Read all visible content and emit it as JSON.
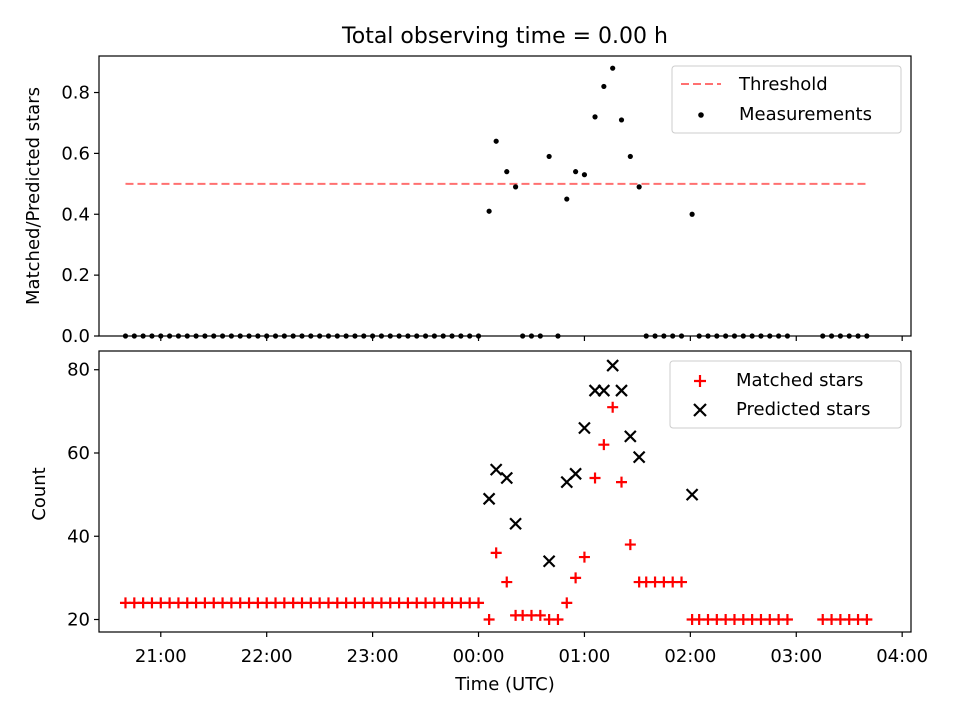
{
  "figure": {
    "title": "Total observing time = 0.00 h"
  },
  "chart_data": [
    {
      "type": "scatter",
      "ylabel": "Matched/Predicted stars",
      "xlabel": "",
      "ylim": [
        0,
        0.92
      ],
      "yticks": [
        "0.0",
        "0.2",
        "0.4",
        "0.6",
        "0.8"
      ],
      "xlim": [
        "20:25",
        "04:05"
      ],
      "grid": false,
      "legend_position": "top-right",
      "threshold": {
        "name": "Threshold",
        "value": 0.5,
        "x_range": [
          "20:40",
          "03:41"
        ],
        "color": "#ff7070",
        "style": "dashed"
      },
      "series": [
        {
          "name": "Measurements",
          "marker": "dot",
          "color": "#000000",
          "points": [
            [
              "20:40",
              0
            ],
            [
              "20:45",
              0
            ],
            [
              "20:50",
              0
            ],
            [
              "20:55",
              0
            ],
            [
              "21:00",
              0
            ],
            [
              "21:05",
              0
            ],
            [
              "21:10",
              0
            ],
            [
              "21:15",
              0
            ],
            [
              "21:20",
              0
            ],
            [
              "21:25",
              0
            ],
            [
              "21:30",
              0
            ],
            [
              "21:35",
              0
            ],
            [
              "21:40",
              0
            ],
            [
              "21:45",
              0
            ],
            [
              "21:50",
              0
            ],
            [
              "21:55",
              0
            ],
            [
              "22:00",
              0
            ],
            [
              "22:05",
              0
            ],
            [
              "22:10",
              0
            ],
            [
              "22:15",
              0
            ],
            [
              "22:20",
              0
            ],
            [
              "22:25",
              0
            ],
            [
              "22:30",
              0
            ],
            [
              "22:35",
              0
            ],
            [
              "22:40",
              0
            ],
            [
              "22:45",
              0
            ],
            [
              "22:50",
              0
            ],
            [
              "22:55",
              0
            ],
            [
              "23:00",
              0
            ],
            [
              "23:05",
              0
            ],
            [
              "23:10",
              0
            ],
            [
              "23:15",
              0
            ],
            [
              "23:20",
              0
            ],
            [
              "23:25",
              0
            ],
            [
              "23:30",
              0
            ],
            [
              "23:35",
              0
            ],
            [
              "23:40",
              0
            ],
            [
              "23:45",
              0
            ],
            [
              "23:50",
              0
            ],
            [
              "23:55",
              0
            ],
            [
              "00:00",
              0
            ],
            [
              "00:06",
              0.41
            ],
            [
              "00:10",
              0.64
            ],
            [
              "00:16",
              0.54
            ],
            [
              "00:21",
              0.49
            ],
            [
              "00:25",
              0
            ],
            [
              "00:30",
              0
            ],
            [
              "00:35",
              0
            ],
            [
              "00:40",
              0.59
            ],
            [
              "00:45",
              0
            ],
            [
              "00:50",
              0.45
            ],
            [
              "00:55",
              0.54
            ],
            [
              "01:00",
              0.53
            ],
            [
              "01:06",
              0.72
            ],
            [
              "01:11",
              0.82
            ],
            [
              "01:16",
              0.88
            ],
            [
              "01:21",
              0.71
            ],
            [
              "01:26",
              0.59
            ],
            [
              "01:31",
              0.49
            ],
            [
              "01:35",
              0
            ],
            [
              "01:40",
              0
            ],
            [
              "01:45",
              0
            ],
            [
              "01:50",
              0
            ],
            [
              "01:55",
              0
            ],
            [
              "02:01",
              0.4
            ],
            [
              "02:05",
              0
            ],
            [
              "02:10",
              0
            ],
            [
              "02:15",
              0
            ],
            [
              "02:20",
              0
            ],
            [
              "02:25",
              0
            ],
            [
              "02:30",
              0
            ],
            [
              "02:35",
              0
            ],
            [
              "02:40",
              0
            ],
            [
              "02:45",
              0
            ],
            [
              "02:50",
              0
            ],
            [
              "02:55",
              0
            ],
            [
              "03:15",
              0
            ],
            [
              "03:20",
              0
            ],
            [
              "03:25",
              0
            ],
            [
              "03:30",
              0
            ],
            [
              "03:35",
              0
            ],
            [
              "03:40",
              0
            ]
          ]
        }
      ]
    },
    {
      "type": "scatter",
      "ylabel": "Count",
      "xlabel": "Time (UTC)",
      "ylim": [
        17,
        84.5
      ],
      "yticks": [
        "20",
        "40",
        "60",
        "80"
      ],
      "xlim": [
        "20:25",
        "04:05"
      ],
      "xticks": [
        "21:00",
        "22:00",
        "23:00",
        "00:00",
        "01:00",
        "02:00",
        "03:00",
        "04:00"
      ],
      "grid": false,
      "legend_position": "top-right",
      "series": [
        {
          "name": "Matched stars",
          "marker": "plus",
          "color": "#ff0000",
          "points": [
            [
              "20:40",
              24
            ],
            [
              "20:45",
              24
            ],
            [
              "20:50",
              24
            ],
            [
              "20:55",
              24
            ],
            [
              "21:00",
              24
            ],
            [
              "21:05",
              24
            ],
            [
              "21:10",
              24
            ],
            [
              "21:15",
              24
            ],
            [
              "21:20",
              24
            ],
            [
              "21:25",
              24
            ],
            [
              "21:30",
              24
            ],
            [
              "21:35",
              24
            ],
            [
              "21:40",
              24
            ],
            [
              "21:45",
              24
            ],
            [
              "21:50",
              24
            ],
            [
              "21:55",
              24
            ],
            [
              "22:00",
              24
            ],
            [
              "22:05",
              24
            ],
            [
              "22:10",
              24
            ],
            [
              "22:15",
              24
            ],
            [
              "22:20",
              24
            ],
            [
              "22:25",
              24
            ],
            [
              "22:30",
              24
            ],
            [
              "22:35",
              24
            ],
            [
              "22:40",
              24
            ],
            [
              "22:45",
              24
            ],
            [
              "22:50",
              24
            ],
            [
              "22:55",
              24
            ],
            [
              "23:00",
              24
            ],
            [
              "23:05",
              24
            ],
            [
              "23:10",
              24
            ],
            [
              "23:15",
              24
            ],
            [
              "23:20",
              24
            ],
            [
              "23:25",
              24
            ],
            [
              "23:30",
              24
            ],
            [
              "23:35",
              24
            ],
            [
              "23:40",
              24
            ],
            [
              "23:45",
              24
            ],
            [
              "23:50",
              24
            ],
            [
              "23:55",
              24
            ],
            [
              "00:00",
              24
            ],
            [
              "00:06",
              20
            ],
            [
              "00:10",
              36
            ],
            [
              "00:16",
              29
            ],
            [
              "00:21",
              21
            ],
            [
              "00:25",
              21
            ],
            [
              "00:30",
              21
            ],
            [
              "00:35",
              21
            ],
            [
              "00:40",
              20
            ],
            [
              "00:45",
              20
            ],
            [
              "00:50",
              24
            ],
            [
              "00:55",
              30
            ],
            [
              "01:00",
              35
            ],
            [
              "01:06",
              54
            ],
            [
              "01:11",
              62
            ],
            [
              "01:16",
              71
            ],
            [
              "01:21",
              53
            ],
            [
              "01:26",
              38
            ],
            [
              "01:31",
              29
            ],
            [
              "01:35",
              29
            ],
            [
              "01:40",
              29
            ],
            [
              "01:45",
              29
            ],
            [
              "01:50",
              29
            ],
            [
              "01:55",
              29
            ],
            [
              "02:01",
              20
            ],
            [
              "02:05",
              20
            ],
            [
              "02:10",
              20
            ],
            [
              "02:15",
              20
            ],
            [
              "02:20",
              20
            ],
            [
              "02:25",
              20
            ],
            [
              "02:30",
              20
            ],
            [
              "02:35",
              20
            ],
            [
              "02:40",
              20
            ],
            [
              "02:45",
              20
            ],
            [
              "02:50",
              20
            ],
            [
              "02:55",
              20
            ],
            [
              "03:15",
              20
            ],
            [
              "03:20",
              20
            ],
            [
              "03:25",
              20
            ],
            [
              "03:30",
              20
            ],
            [
              "03:35",
              20
            ],
            [
              "03:40",
              20
            ]
          ]
        },
        {
          "name": "Predicted stars",
          "marker": "x",
          "color": "#000000",
          "points": [
            [
              "00:06",
              49
            ],
            [
              "00:10",
              56
            ],
            [
              "00:16",
              54
            ],
            [
              "00:21",
              43
            ],
            [
              "00:40",
              34
            ],
            [
              "00:50",
              53
            ],
            [
              "00:55",
              55
            ],
            [
              "01:00",
              66
            ],
            [
              "01:06",
              75
            ],
            [
              "01:11",
              75
            ],
            [
              "01:16",
              81
            ],
            [
              "01:21",
              75
            ],
            [
              "01:26",
              64
            ],
            [
              "01:31",
              59
            ],
            [
              "02:01",
              50
            ]
          ]
        }
      ]
    }
  ]
}
